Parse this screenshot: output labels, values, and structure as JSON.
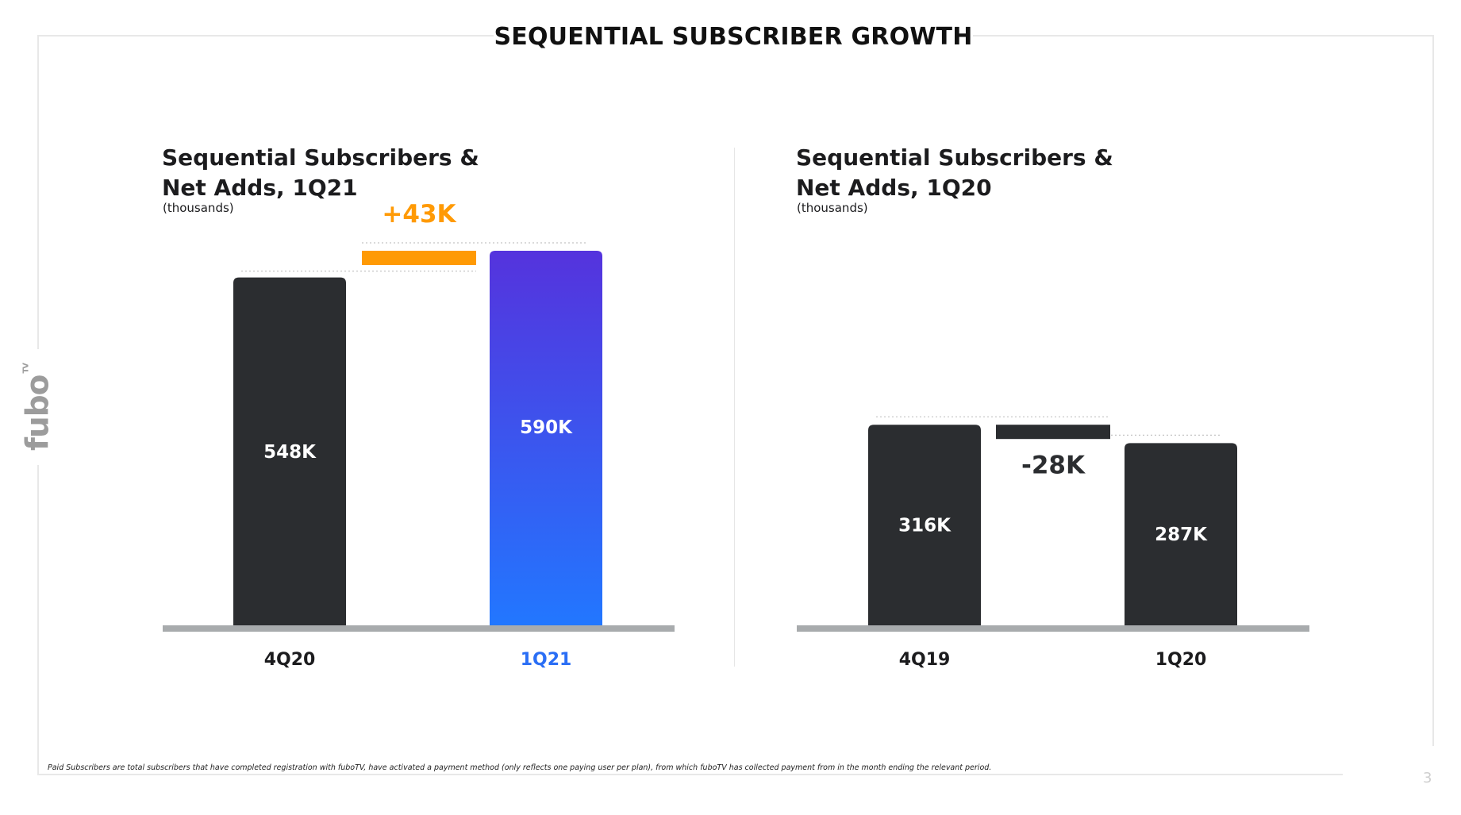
{
  "page": {
    "headline": "SEQUENTIAL SUBSCRIBER GROWTH",
    "logo_text": "fubo",
    "logo_sup": "TV",
    "footnote": "Paid Subscribers are total subscribers that have completed registration with fuboTV, have activated a payment method (only reflects one paying user per plan), from which fuboTV has collected payment from in the month ending the relevant period.",
    "page_number": "3"
  },
  "colors": {
    "dark_bar": "#2b2d30",
    "gain": "#ff9a05",
    "loss": "#2b2d30",
    "gradient_top": "#5533dd",
    "gradient_bottom": "#2277ff",
    "baseline": "#a8abad",
    "highlight_label": "#2a6ef5"
  },
  "chart_data": [
    {
      "type": "bar",
      "subtype": "waterfall",
      "title_line1": "Sequential Subscribers &",
      "title_line2": "Net Adds, 1Q21",
      "units": "(thousands)",
      "categories": [
        "4Q20",
        "1Q21"
      ],
      "values": [
        548,
        590
      ],
      "value_labels": [
        "548K",
        "590K"
      ],
      "net_change": 43,
      "net_change_label": "+43K",
      "highlight_category": "1Q21"
    },
    {
      "type": "bar",
      "subtype": "waterfall",
      "title_line1": "Sequential Subscribers &",
      "title_line2": "Net Adds, 1Q20",
      "units": "(thousands)",
      "categories": [
        "4Q19",
        "1Q20"
      ],
      "values": [
        316,
        287
      ],
      "value_labels": [
        "316K",
        "287K"
      ],
      "net_change": -28,
      "net_change_label": "-28K"
    }
  ]
}
